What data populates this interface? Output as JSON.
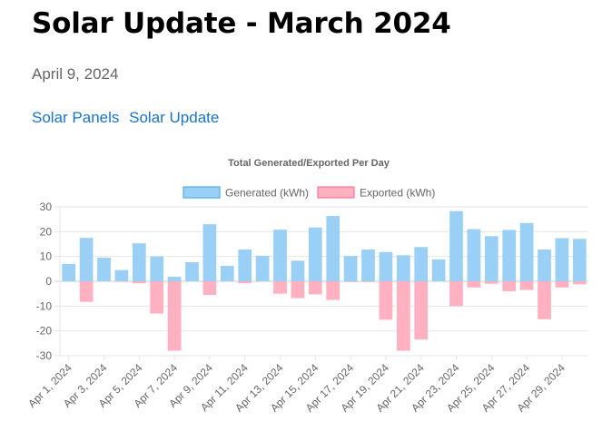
{
  "post": {
    "title": "Solar Update - March 2024",
    "date": "April 9, 2024",
    "tags": [
      "Solar Panels",
      "Solar Update"
    ]
  },
  "chart_data": {
    "type": "bar",
    "title": "Total Generated/Exported Per Day",
    "legend_position": "top",
    "grid": true,
    "ylim": [
      -30,
      30
    ],
    "yticks": [
      30,
      20,
      10,
      0,
      -10,
      -20,
      -30
    ],
    "categories": [
      "Apr 1, 2024",
      "Apr 2, 2024",
      "Apr 3, 2024",
      "Apr 4, 2024",
      "Apr 5, 2024",
      "Apr 6, 2024",
      "Apr 7, 2024",
      "Apr 8, 2024",
      "Apr 9, 2024",
      "Apr 10, 2024",
      "Apr 11, 2024",
      "Apr 12, 2024",
      "Apr 13, 2024",
      "Apr 14, 2024",
      "Apr 15, 2024",
      "Apr 16, 2024",
      "Apr 17, 2024",
      "Apr 18, 2024",
      "Apr 19, 2024",
      "Apr 20, 2024",
      "Apr 21, 2024",
      "Apr 22, 2024",
      "Apr 23, 2024",
      "Apr 24, 2024",
      "Apr 25, 2024",
      "Apr 26, 2024",
      "Apr 27, 2024",
      "Apr 28, 2024",
      "Apr 29, 2024",
      "Apr 30, 2024"
    ],
    "xtick_labels": [
      "Apr 1, 2024",
      "Apr 3, 2024",
      "Apr 5, 2024",
      "Apr 7, 2024",
      "Apr 9, 2024",
      "Apr 11, 2024",
      "Apr 13, 2024",
      "Apr 15, 2024",
      "Apr 17, 2024",
      "Apr 19, 2024",
      "Apr 21, 2024",
      "Apr 23, 2024",
      "Apr 25, 2024",
      "Apr 27, 2024",
      "Apr 29, 2024"
    ],
    "series": [
      {
        "name": "Generated (kWh)",
        "fill": "#9ad0f5",
        "stroke": "#36a2eb",
        "values": [
          7,
          17.5,
          9.5,
          4.5,
          15.3,
          10,
          1.8,
          7.7,
          23,
          6.2,
          12.8,
          10.3,
          20.8,
          8.3,
          21.7,
          26.3,
          10.2,
          12.8,
          11.8,
          10.5,
          13.8,
          8.8,
          28.3,
          21,
          18.2,
          20.7,
          23.5,
          12.8,
          17.4,
          17.1
        ]
      },
      {
        "name": "Exported (kWh)",
        "fill": "#ffb1c1",
        "stroke": "#ff6384",
        "values": [
          0,
          -8.3,
          0,
          -0.2,
          -0.8,
          -13,
          -28,
          0,
          -5.5,
          0,
          -0.8,
          0,
          -5,
          -6.8,
          -5.3,
          -7.5,
          -0.3,
          -0.3,
          -15.5,
          -28,
          -23.5,
          0,
          -10,
          -2.5,
          -1,
          -4,
          -3.5,
          -15.3,
          -2.5,
          -1.2
        ]
      }
    ]
  }
}
